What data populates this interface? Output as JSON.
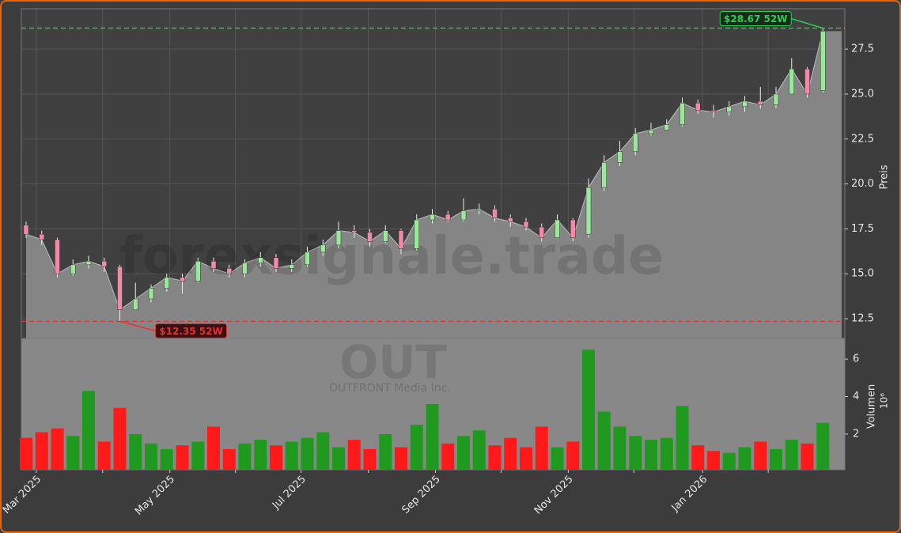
{
  "chart_data": {
    "type": "candlestick",
    "title": "OUT",
    "subtitle": "OUTFRONT Media Inc.",
    "watermark": "forexsignale.trade",
    "ylabel": "Preis",
    "volume_label": "Volumen",
    "volume_scale_label": "10⁶",
    "categories": [
      null,
      null,
      null,
      null,
      null,
      null,
      null,
      null,
      null,
      null,
      null,
      null,
      null,
      null,
      null,
      null,
      null,
      null,
      null,
      null,
      null,
      null,
      null,
      null,
      null,
      null,
      null,
      null,
      null,
      null,
      null,
      null,
      null,
      null,
      null,
      null,
      null,
      null,
      null,
      null,
      null,
      null,
      null,
      null,
      null,
      null,
      null,
      null,
      null,
      null,
      null,
      null
    ],
    "open": [
      17.7,
      17.2,
      16.9,
      15.0,
      15.5,
      15.7,
      15.4,
      13.0,
      13.6,
      14.2,
      14.8,
      14.6,
      15.7,
      15.3,
      15.0,
      15.6,
      15.9,
      15.3,
      15.5,
      16.2,
      16.6,
      17.4,
      17.3,
      16.8,
      17.4,
      16.4,
      18.0,
      18.3,
      18.0,
      18.5,
      18.6,
      18.1,
      17.9,
      17.6,
      17.0,
      18.0,
      17.2,
      19.8,
      21.2,
      21.8,
      22.8,
      23.0,
      23.3,
      24.5,
      24.1,
      24.0,
      24.3,
      24.6,
      24.4,
      25.0,
      26.4,
      25.2
    ],
    "high": [
      17.9,
      17.4,
      17.0,
      15.8,
      16.0,
      15.9,
      15.5,
      14.5,
      14.4,
      15.0,
      15.0,
      15.9,
      15.9,
      15.5,
      15.8,
      16.2,
      16.1,
      15.8,
      16.5,
      16.9,
      17.9,
      17.7,
      17.5,
      17.7,
      17.5,
      18.3,
      18.6,
      18.5,
      19.2,
      18.9,
      18.8,
      18.3,
      18.1,
      17.8,
      18.3,
      18.1,
      20.3,
      21.6,
      22.4,
      23.1,
      23.4,
      23.6,
      24.8,
      24.7,
      24.4,
      24.6,
      24.9,
      25.4,
      25.4,
      27.0,
      26.5,
      28.67
    ],
    "low": [
      17.0,
      16.6,
      14.8,
      14.9,
      15.3,
      15.1,
      12.35,
      13.0,
      13.4,
      14.0,
      13.9,
      14.5,
      15.1,
      14.8,
      14.8,
      15.4,
      15.1,
      15.1,
      15.4,
      16.0,
      16.4,
      17.0,
      16.5,
      16.7,
      16.1,
      16.3,
      17.8,
      17.9,
      17.9,
      18.3,
      17.9,
      17.6,
      17.4,
      16.8,
      17.0,
      16.8,
      17.0,
      19.6,
      21.0,
      21.6,
      22.7,
      23.0,
      23.2,
      23.9,
      23.7,
      23.8,
      24.0,
      24.2,
      24.2,
      25.0,
      24.8,
      25.1
    ],
    "close": [
      17.2,
      16.9,
      15.0,
      15.5,
      15.7,
      15.4,
      13.0,
      13.6,
      14.2,
      14.8,
      14.6,
      15.7,
      15.3,
      15.0,
      15.6,
      15.9,
      15.3,
      15.5,
      16.2,
      16.6,
      17.4,
      17.3,
      16.8,
      17.4,
      16.4,
      18.0,
      18.3,
      18.0,
      18.5,
      18.6,
      18.1,
      17.9,
      17.6,
      17.0,
      18.0,
      17.0,
      19.8,
      21.2,
      21.8,
      22.8,
      23.0,
      23.3,
      24.5,
      24.1,
      24.0,
      24.3,
      24.6,
      24.4,
      25.0,
      26.4,
      25.0,
      28.5
    ],
    "volume": [
      1.8,
      2.1,
      2.3,
      1.9,
      4.3,
      1.6,
      3.4,
      2.0,
      1.5,
      1.2,
      1.4,
      1.6,
      2.4,
      1.2,
      1.5,
      1.7,
      1.4,
      1.6,
      1.8,
      2.1,
      1.3,
      1.7,
      1.2,
      2.0,
      1.3,
      2.5,
      3.6,
      1.5,
      1.9,
      2.2,
      1.4,
      1.8,
      1.3,
      2.4,
      1.3,
      1.6,
      6.5,
      3.2,
      2.4,
      1.9,
      1.7,
      1.8,
      3.5,
      1.4,
      1.1,
      1.0,
      1.3,
      1.6,
      1.2,
      1.7,
      1.5,
      2.6
    ],
    "up_color": "#1f9a1f",
    "down_color": "#ff1a1a",
    "area_color": "#858585",
    "ylim": [
      11.4,
      29.75
    ],
    "yticks": [
      12.5,
      {
        "value": 15,
        "label": "15.0"
      },
      17.5,
      {
        "value": 20,
        "label": "20.0"
      },
      22.5,
      {
        "value": 25,
        "label": "25.0"
      },
      27.5
    ],
    "volume_lim": [
      0.1,
      7.1
    ],
    "volume_ticks": [
      2,
      4,
      6
    ],
    "xticks": [
      {
        "value": 0.65,
        "label": "Mar 2025"
      },
      {
        "value": 4.9,
        "label": null
      },
      {
        "value": 9.2,
        "label": "May 2025"
      },
      {
        "value": 13.4,
        "label": null
      },
      {
        "value": 17.6,
        "label": "Jul 2025"
      },
      {
        "value": 21.9,
        "label": null
      },
      {
        "value": 26.2,
        "label": "Sep 2025"
      },
      {
        "value": 30.4,
        "label": null
      },
      {
        "value": 34.7,
        "label": "Nov 2025"
      },
      {
        "value": 38.9,
        "label": null
      },
      {
        "value": 43.3,
        "label": "Jan 2026"
      },
      {
        "value": 47.5,
        "label": null
      }
    ],
    "grid": true,
    "annotations": [
      {
        "label": "$28.67 52W",
        "value": 28.67,
        "color": "#2ecc55"
      },
      {
        "label": "$12.35 52W",
        "value": 12.35,
        "color": "#e83030"
      }
    ]
  }
}
